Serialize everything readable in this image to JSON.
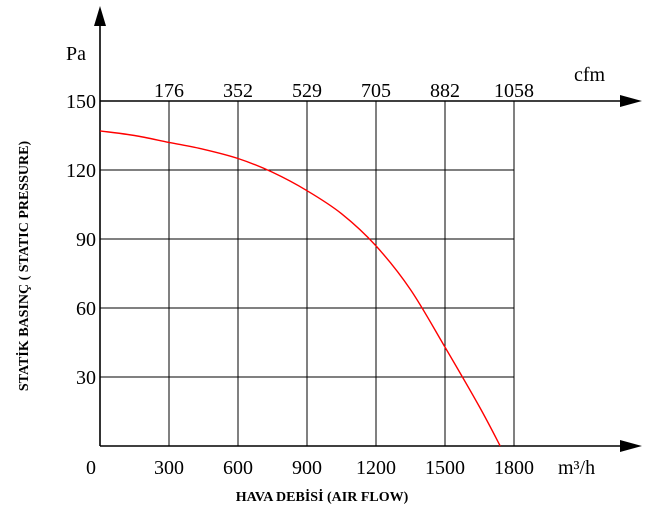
{
  "chart_data": {
    "type": "line",
    "title": "",
    "xlabel": "HAVA DEBİSİ (AIR FLOW)",
    "ylabel": "STATİK BASINÇ ( STATIC PRESSURE)",
    "x_unit": "m³/h",
    "x2_unit": "cfm",
    "y_unit": "Pa",
    "x_ticks": [
      0,
      300,
      600,
      900,
      1200,
      1500,
      1800
    ],
    "x_tick_labels": [
      "0",
      "300",
      "600",
      "900",
      "1200",
      "1500",
      "1800"
    ],
    "x2_tick_labels": [
      "176",
      "352",
      "529",
      "705",
      "882",
      "1058"
    ],
    "y_ticks": [
      30,
      60,
      90,
      120,
      150
    ],
    "y_tick_labels": [
      "30",
      "60",
      "90",
      "120",
      "150"
    ],
    "xlim": [
      0,
      1800
    ],
    "ylim": [
      0,
      150
    ],
    "grid": true,
    "series": [
      {
        "color": "#ff0000",
        "x": [
          0,
          150,
          300,
          450,
          600,
          750,
          900,
          1050,
          1200,
          1350,
          1500,
          1650,
          1740
        ],
        "y": [
          137,
          135,
          132,
          129,
          125,
          119,
          111,
          101,
          87,
          68,
          43,
          17,
          0
        ]
      }
    ]
  }
}
